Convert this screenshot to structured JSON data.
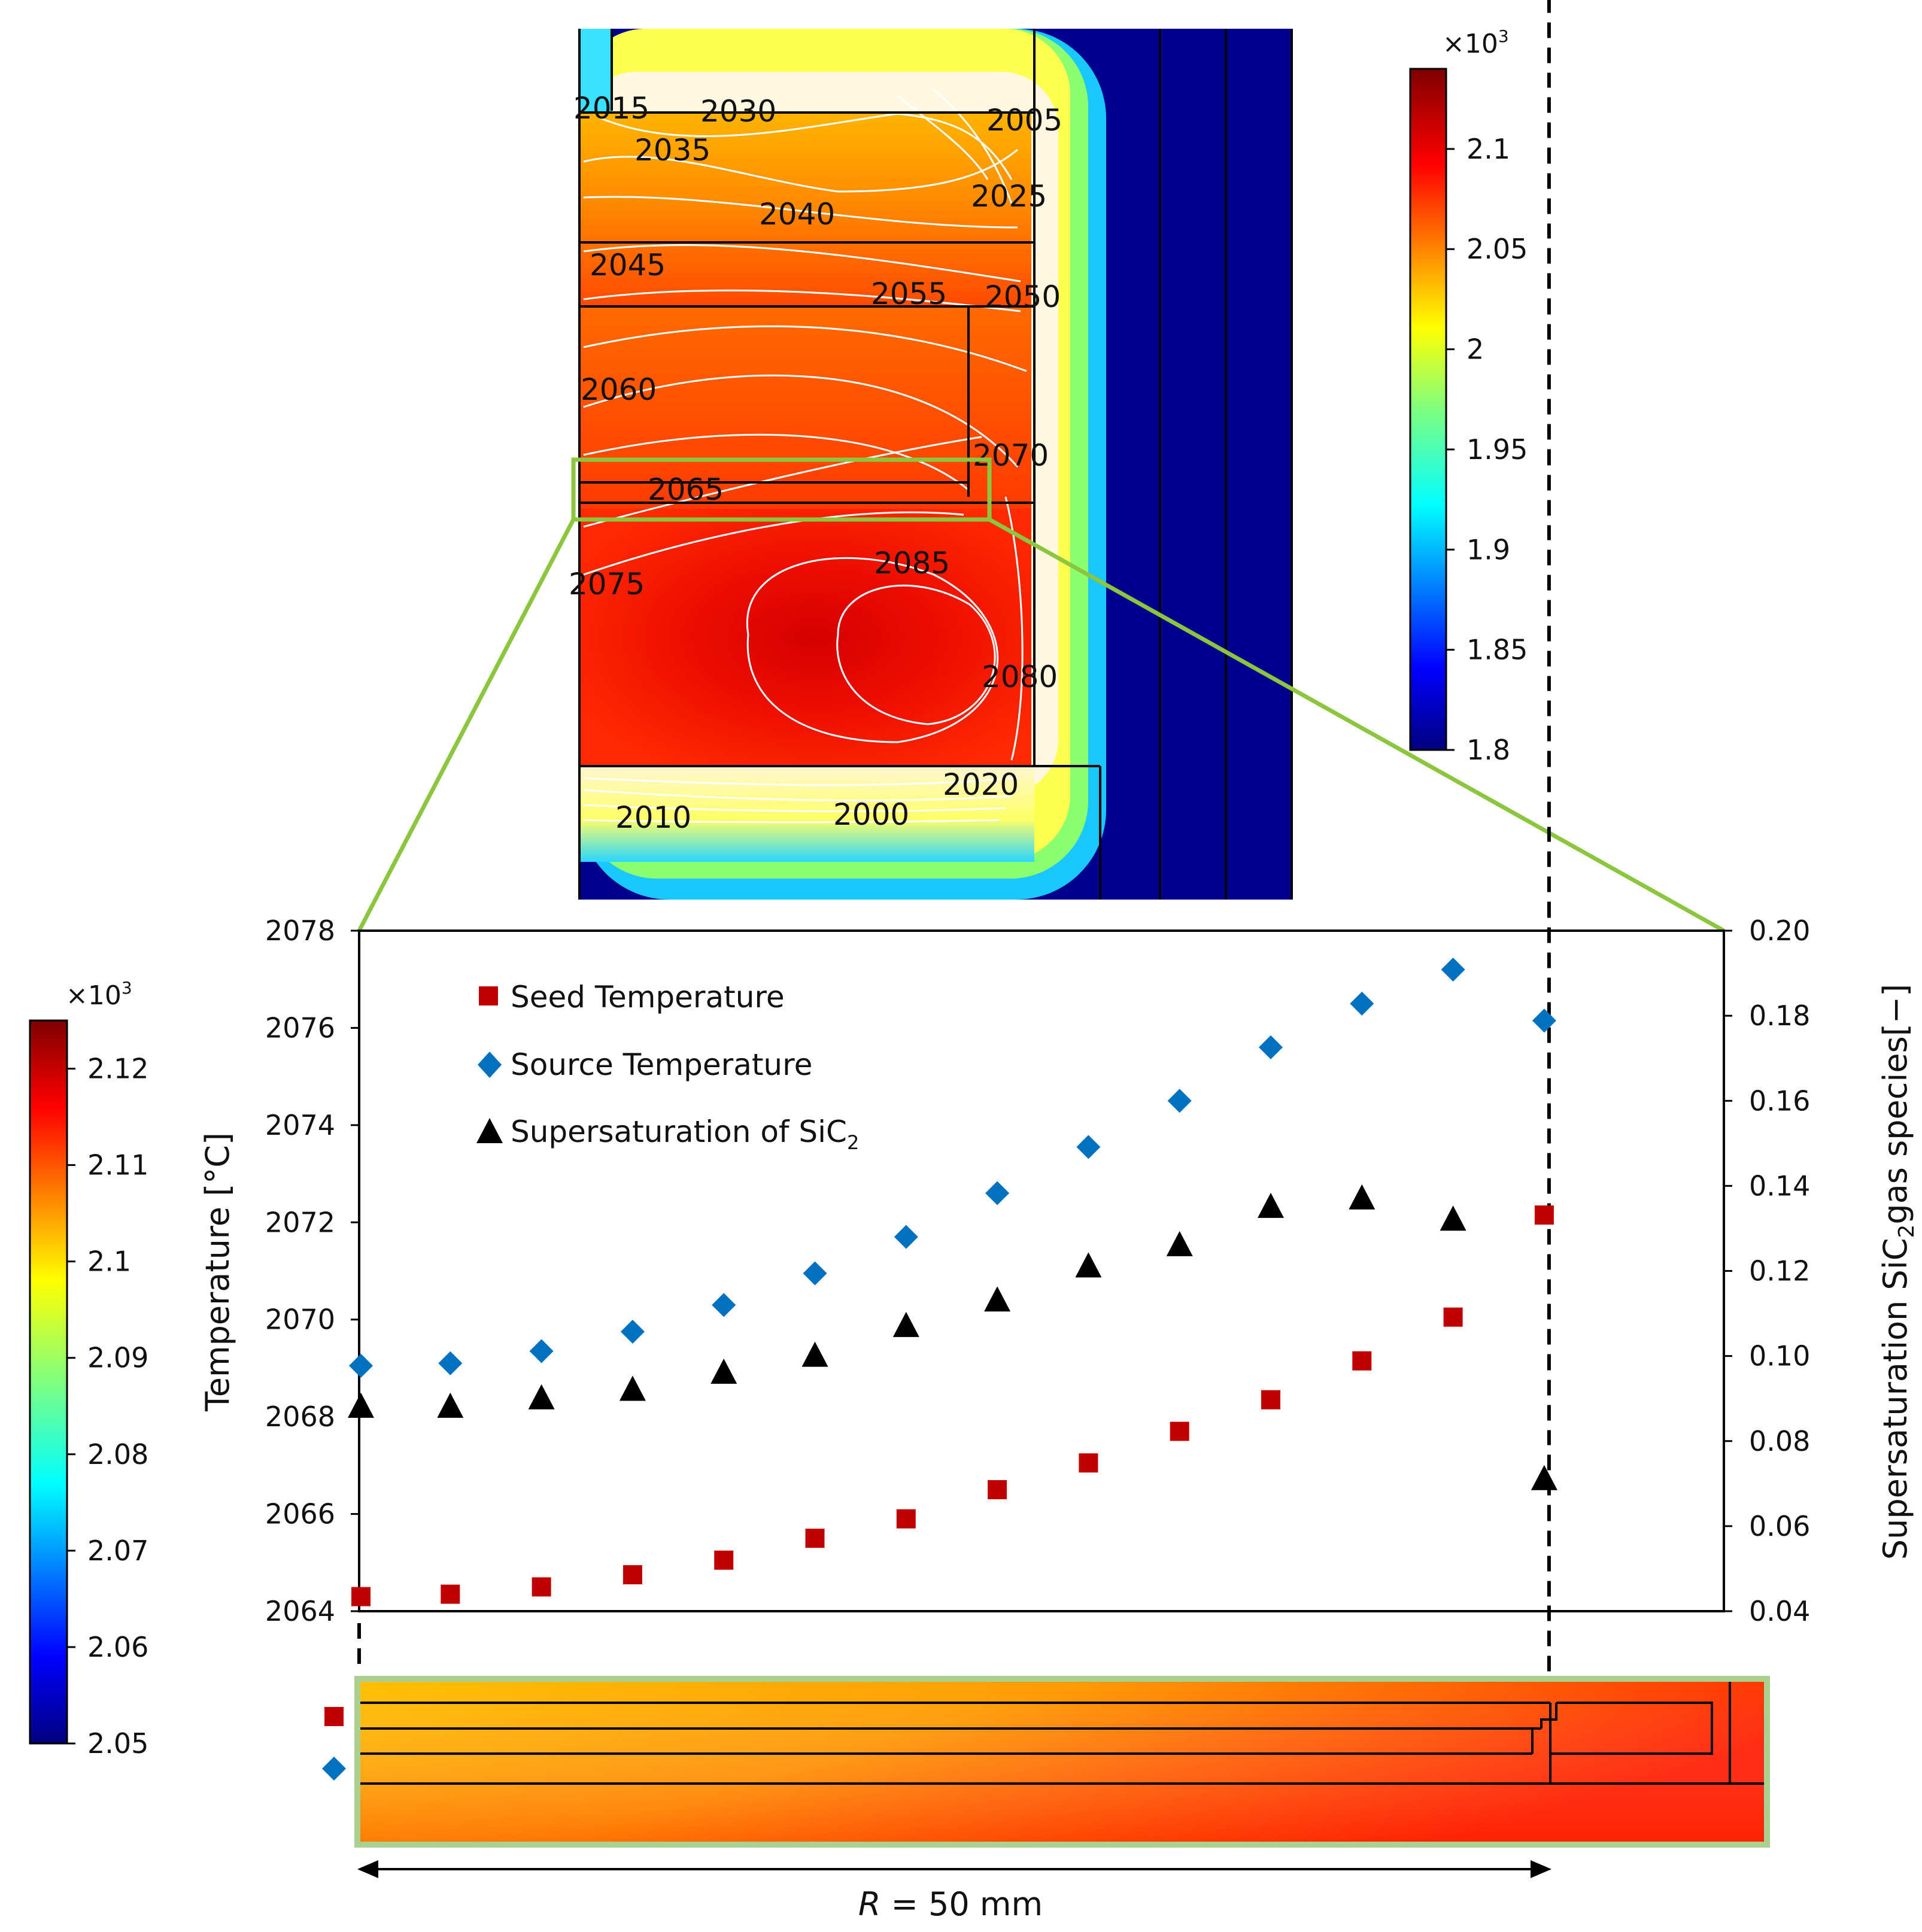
{
  "contour_map": {
    "contour_labels": [
      "2015",
      "2030",
      "2005",
      "2035",
      "2040",
      "2025",
      "2045",
      "2055",
      "2050",
      "2060",
      "2070",
      "2065",
      "2085",
      "2075",
      "2080",
      "2020",
      "2010",
      "2000"
    ],
    "colorbar": {
      "multiplier": "×10",
      "multiplier_exp": "3",
      "ticks": [
        "2.1",
        "2.05",
        "2",
        "1.95",
        "1.9",
        "1.85",
        "1.8"
      ],
      "range": [
        1.8,
        2.14
      ]
    }
  },
  "detail_map": {
    "colorbar": {
      "multiplier": "×10",
      "multiplier_exp": "3",
      "ticks": [
        "2.12",
        "2.11",
        "2.1",
        "2.09",
        "2.08",
        "2.07",
        "2.06",
        "2.05"
      ],
      "range": [
        2.05,
        2.125
      ]
    },
    "radius_prefix": "R",
    "radius_suffix": " = 50 mm"
  },
  "chart_data": {
    "type": "scatter",
    "x": [
      0,
      5,
      10,
      15,
      20,
      25,
      30,
      35,
      40,
      45,
      50,
      55,
      60,
      65
    ],
    "xlabel": "R = 50 mm",
    "ylabel": "Temperature [°C]",
    "ylabel2_prefix": "Supersaturation SiC",
    "ylabel2_sub": "2",
    "ylabel2_suffix": "gas species[−]",
    "ylim": [
      2064,
      2078
    ],
    "y2lim": [
      0.04,
      0.2
    ],
    "yticks": [
      "2078",
      "2076",
      "2074",
      "2072",
      "2070",
      "2068",
      "2066",
      "2064"
    ],
    "y2ticks": [
      "0.20",
      "0.18",
      "0.16",
      "0.14",
      "0.12",
      "0.10",
      "0.08",
      "0.06",
      "0.04"
    ],
    "series": [
      {
        "name": "Seed Temperature",
        "axis": "left",
        "marker": "square",
        "color": "#c00000",
        "values": [
          2064.3,
          2064.35,
          2064.5,
          2064.75,
          2065.05,
          2065.5,
          2065.9,
          2066.5,
          2067.05,
          2067.7,
          2068.35,
          2069.15,
          2070.05,
          2072.15
        ]
      },
      {
        "name": "Source Temperature",
        "axis": "left",
        "marker": "diamond",
        "color": "#0070c0",
        "values": [
          2069.05,
          2069.1,
          2069.35,
          2069.75,
          2070.3,
          2070.95,
          2071.7,
          2072.6,
          2073.55,
          2074.5,
          2075.6,
          2076.5,
          2077.2,
          2076.15
        ]
      },
      {
        "name": "Supersaturation of SiC",
        "name_sub": "2",
        "axis": "right",
        "marker": "triangle",
        "color": "#000000",
        "values": [
          0.088,
          0.088,
          0.09,
          0.092,
          0.096,
          0.1,
          0.107,
          0.113,
          0.121,
          0.126,
          0.135,
          0.137,
          0.132,
          0.071
        ]
      }
    ]
  }
}
